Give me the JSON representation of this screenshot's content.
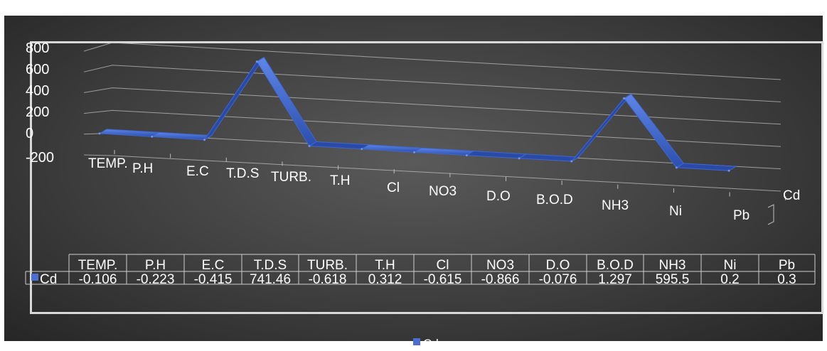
{
  "chart_data": {
    "type": "line",
    "title": "",
    "categories": [
      "TEMP.",
      "P.H",
      "E.C",
      "T.D.S",
      "TURB.",
      "T.H",
      "Cl",
      "NO3",
      "D.O",
      "B.O.D",
      "NH3",
      "Ni",
      "Pb"
    ],
    "series": [
      {
        "name": "Cd",
        "values": [
          -0.106,
          -0.223,
          -0.415,
          741.46,
          -0.618,
          0.312,
          -0.615,
          -0.866,
          -0.076,
          1.297,
          595.5,
          0.2,
          0.3
        ],
        "labels": [
          "-0.106",
          "-0.223",
          "-0.415",
          "741.46",
          "-0.618",
          "0.312",
          "-0.615",
          "-0.866",
          "-0.076",
          "1.297",
          "595.5",
          "0.2",
          "0.3"
        ]
      }
    ],
    "yticks": [
      "800",
      "600",
      "400",
      "200",
      "0",
      "-200"
    ],
    "ylim": [
      -200,
      800
    ],
    "depth_label": "Cd",
    "legend": "bottom",
    "grid": true,
    "data_table": true,
    "colors": {
      "series": "#3b5fc0",
      "grid": "#bfbfbf",
      "text": "#ffffff"
    }
  }
}
